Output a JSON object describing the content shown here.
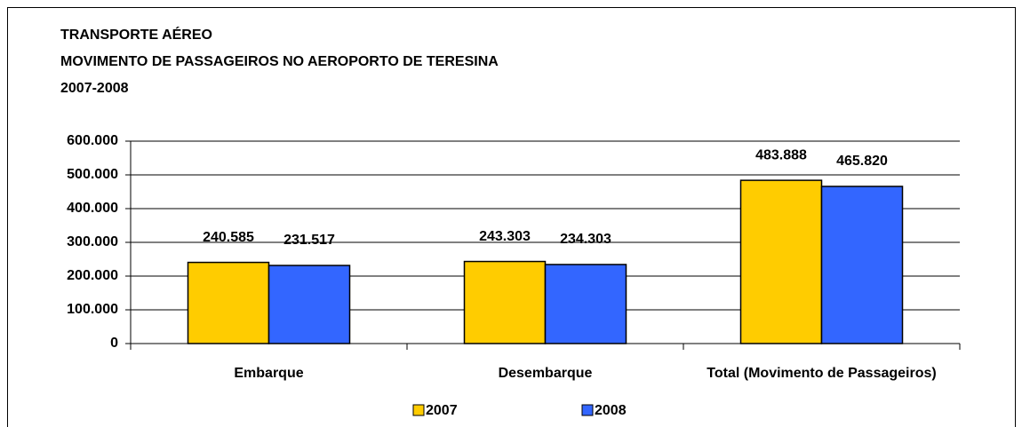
{
  "chart_data": {
    "type": "bar",
    "title": [
      "TRANSPORTE AÉREO",
      "MOVIMENTO DE PASSAGEIROS NO AEROPORTO DE TERESINA",
      "2007-2008"
    ],
    "categories": [
      "Embarque",
      "Desembarque",
      "Total (Movimento de Passageiros)"
    ],
    "series": [
      {
        "name": "2007",
        "color": "#FFCC00",
        "values": [
          240585,
          243303,
          483888
        ],
        "value_labels": [
          "240.585",
          "243.303",
          "483.888"
        ]
      },
      {
        "name": "2008",
        "color": "#3366FF",
        "values": [
          231517,
          234303,
          465820
        ],
        "value_labels": [
          "231.517",
          "234.303",
          "465.820"
        ]
      }
    ],
    "ylim": [
      0,
      600000
    ],
    "yticks": [
      0,
      {
        "value": 100000,
        "label": "100.000"
      },
      {
        "value": 200000,
        "label": "200.000"
      },
      {
        "value": 300000,
        "label": "300.000"
      },
      {
        "value": 400000,
        "label": "400.000"
      },
      {
        "value": 500000,
        "label": "500.000"
      },
      {
        "value": 600000,
        "label": "600.000"
      }
    ],
    "grid": true,
    "legend": "bottom"
  }
}
